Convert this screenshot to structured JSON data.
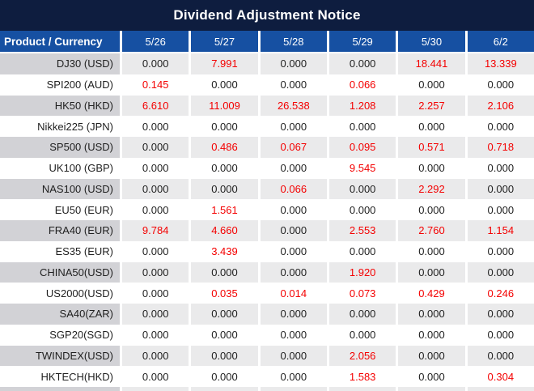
{
  "title": "Dividend Adjustment Notice",
  "table": {
    "header_product": "Product / Currency",
    "dates": [
      "5/26",
      "5/27",
      "5/28",
      "5/29",
      "5/30",
      "6/2"
    ],
    "rows": [
      {
        "product": "DJ30 (USD)",
        "values": [
          "0.000",
          "7.991",
          "0.000",
          "0.000",
          "18.441",
          "13.339"
        ]
      },
      {
        "product": "SPI200 (AUD)",
        "values": [
          "0.145",
          "0.000",
          "0.000",
          "0.066",
          "0.000",
          "0.000"
        ]
      },
      {
        "product": "HK50 (HKD)",
        "values": [
          "6.610",
          "11.009",
          "26.538",
          "1.208",
          "2.257",
          "2.106"
        ]
      },
      {
        "product": "Nikkei225 (JPN)",
        "values": [
          "0.000",
          "0.000",
          "0.000",
          "0.000",
          "0.000",
          "0.000"
        ]
      },
      {
        "product": "SP500 (USD)",
        "values": [
          "0.000",
          "0.486",
          "0.067",
          "0.095",
          "0.571",
          "0.718"
        ]
      },
      {
        "product": "UK100 (GBP)",
        "values": [
          "0.000",
          "0.000",
          "0.000",
          "9.545",
          "0.000",
          "0.000"
        ]
      },
      {
        "product": "NAS100 (USD)",
        "values": [
          "0.000",
          "0.000",
          "0.066",
          "0.000",
          "2.292",
          "0.000"
        ]
      },
      {
        "product": "EU50 (EUR)",
        "values": [
          "0.000",
          "1.561",
          "0.000",
          "0.000",
          "0.000",
          "0.000"
        ]
      },
      {
        "product": "FRA40 (EUR)",
        "values": [
          "9.784",
          "4.660",
          "0.000",
          "2.553",
          "2.760",
          "1.154"
        ]
      },
      {
        "product": "ES35 (EUR)",
        "values": [
          "0.000",
          "3.439",
          "0.000",
          "0.000",
          "0.000",
          "0.000"
        ]
      },
      {
        "product": "CHINA50(USD)",
        "values": [
          "0.000",
          "0.000",
          "0.000",
          "1.920",
          "0.000",
          "0.000"
        ]
      },
      {
        "product": "US2000(USD)",
        "values": [
          "0.000",
          "0.035",
          "0.014",
          "0.073",
          "0.429",
          "0.246"
        ]
      },
      {
        "product": "SA40(ZAR)",
        "values": [
          "0.000",
          "0.000",
          "0.000",
          "0.000",
          "0.000",
          "0.000"
        ]
      },
      {
        "product": "SGP20(SGD)",
        "values": [
          "0.000",
          "0.000",
          "0.000",
          "0.000",
          "0.000",
          "0.000"
        ]
      },
      {
        "product": "TWINDEX(USD)",
        "values": [
          "0.000",
          "0.000",
          "0.000",
          "2.056",
          "0.000",
          "0.000"
        ]
      },
      {
        "product": "HKTECH(HKD)",
        "values": [
          "0.000",
          "0.000",
          "0.000",
          "1.583",
          "0.000",
          "0.304"
        ]
      }
    ]
  },
  "colors": {
    "title_bg": "#0e1d3f",
    "header_bg": "#1650a2",
    "stripe_label_bg": "#d2d2d6",
    "stripe_value_bg": "#eaeaeb",
    "value_zero": "#1f1f1f",
    "value_nonzero": "#f40000"
  }
}
